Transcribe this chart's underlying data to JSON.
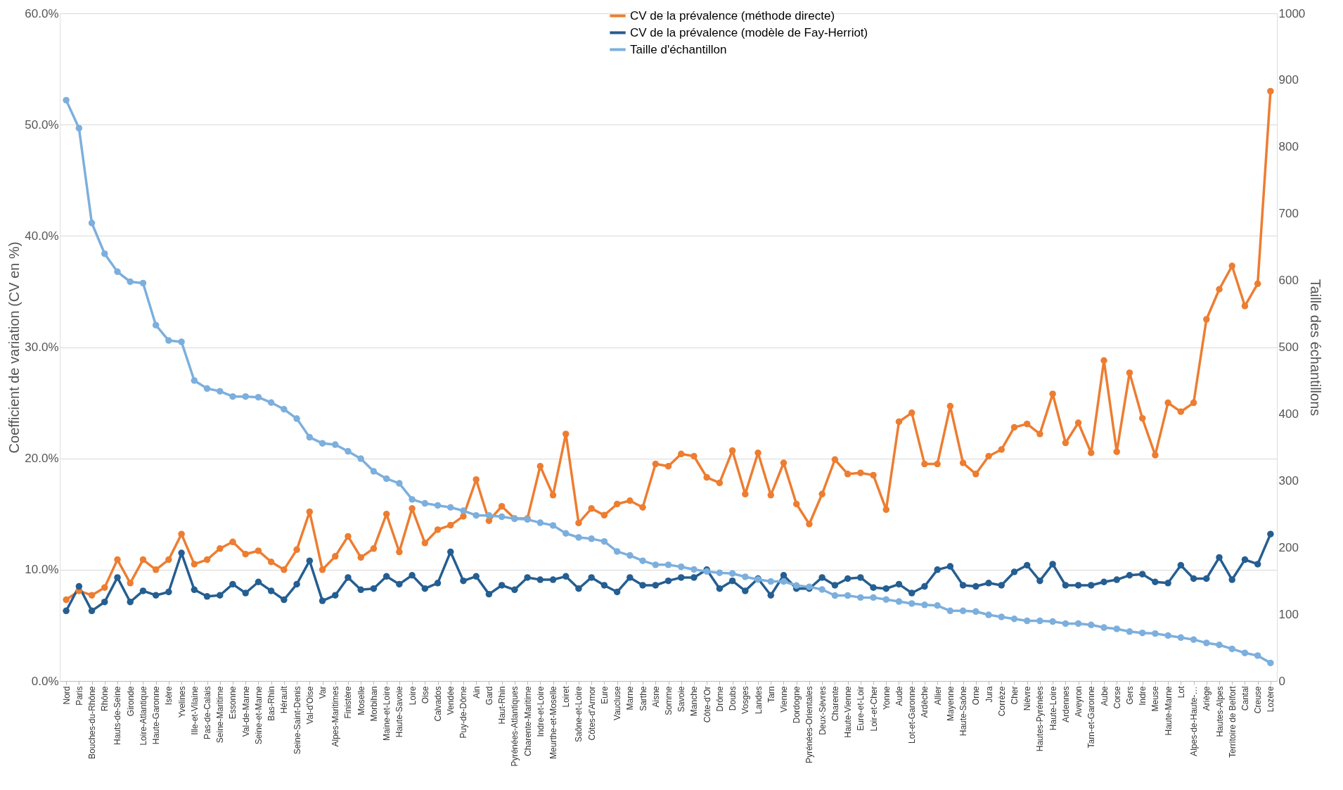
{
  "chart_data": {
    "type": "line",
    "ylabel": "Coefficient de variation (CV en %)",
    "y2label": "Taille des échantillons",
    "legend": "top",
    "grid": "y",
    "marker": "circle",
    "line_style": "solid",
    "categories": [
      "Nord",
      "Paris",
      "Bouches-du-Rhône",
      "Rhône",
      "Hauts-de-Seine",
      "Gironde",
      "Loire-Atlantique",
      "Haute-Garonne",
      "Isère",
      "Yvelines",
      "Ille-et-Vilaine",
      "Pas-de-Calais",
      "Seine-Maritime",
      "Essonne",
      "Val-de-Marne",
      "Seine-et-Marne",
      "Bas-Rhin",
      "Hérault",
      "Seine-Saint-Denis",
      "Val-d'Oise",
      "Var",
      "Alpes-Maritimes",
      "Finistère",
      "Moselle",
      "Morbihan",
      "Maine-et-Loire",
      "Haute-Savoie",
      "Loire",
      "Oise",
      "Calvados",
      "Vendée",
      "Puy-de-Dôme",
      "Ain",
      "Gard",
      "Haut-Rhin",
      "Pyrénées-Atlantiques",
      "Charente-Maritime",
      "Indre-et-Loire",
      "Meurthe-et-Moselle",
      "Loiret",
      "Saône-et-Loire",
      "Côtes-d'Armor",
      "Eure",
      "Vaucluse",
      "Marne",
      "Sarthe",
      "Aisne",
      "Somme",
      "Savoie",
      "Manche",
      "Côte-d'Or",
      "Drôme",
      "Doubs",
      "Vosges",
      "Landes",
      "Tarn",
      "Vienne",
      "Dordogne",
      "Pyrénées-Orientales",
      "Deux-Sèvres",
      "Charente",
      "Haute-Vienne",
      "Eure-et-Loir",
      "Loir-et-Cher",
      "Yonne",
      "Aude",
      "Lot-et-Garonne",
      "Ardèche",
      "Allier",
      "Mayenne",
      "Haute-Saône",
      "Orne",
      "Jura",
      "Corrèze",
      "Cher",
      "Nièvre",
      "Hautes-Pyrénées",
      "Haute-Loire",
      "Ardennes",
      "Aveyron",
      "Tarn-et-Garonne",
      "Aube",
      "Corse",
      "Gers",
      "Indre",
      "Meuse",
      "Haute-Marne",
      "Lot",
      "Alpes-de-Haute-…",
      "Ariège",
      "Hautes-Alpes",
      "Territoire de Belfort",
      "Cantal",
      "Creuse",
      "Lozère"
    ],
    "ylim": [
      0,
      60
    ],
    "yticks": [
      {
        "value": 0,
        "label": "0.0%"
      },
      {
        "value": 10,
        "label": "10.0%"
      },
      {
        "value": 20,
        "label": "20.0%"
      },
      {
        "value": 30,
        "label": "30.0%"
      },
      {
        "value": 40,
        "label": "40.0%"
      },
      {
        "value": 50,
        "label": "50.0%"
      },
      {
        "value": 60,
        "label": "60.0%"
      }
    ],
    "y2lim": [
      0,
      1000
    ],
    "y2ticks": [
      0,
      100,
      200,
      300,
      400,
      500,
      600,
      700,
      800,
      900,
      1000
    ],
    "series": [
      {
        "name": "CV de la prévalence (méthode directe)",
        "color": "#ed7d31",
        "values": [
          7.3,
          8.1,
          7.7,
          8.4,
          10.9,
          8.8,
          10.9,
          10.0,
          10.9,
          13.2,
          10.5,
          10.9,
          11.9,
          12.5,
          11.4,
          11.7,
          10.7,
          10.0,
          11.8,
          15.2,
          10.0,
          11.2,
          13.0,
          11.1,
          11.9,
          15.0,
          11.6,
          15.5,
          12.4,
          13.6,
          14.0,
          14.8,
          18.1,
          14.4,
          15.7,
          14.6,
          14.6,
          19.3,
          16.7,
          22.2,
          14.2,
          15.5,
          14.9,
          15.9,
          16.2,
          15.6,
          19.5,
          19.3,
          20.4,
          20.2,
          18.3,
          17.8,
          20.7,
          16.8,
          20.5,
          16.7,
          19.6,
          15.9,
          14.1,
          16.8,
          19.9,
          18.6,
          18.7,
          18.5,
          15.4,
          23.3,
          24.1,
          19.5,
          19.5,
          24.7,
          19.6,
          18.6,
          20.2,
          20.8,
          22.8,
          23.1,
          22.2,
          25.8,
          21.4,
          23.2,
          20.5,
          28.8,
          20.6,
          27.7,
          23.6,
          20.3,
          25.0,
          24.2,
          25.0,
          32.5,
          35.2,
          37.3,
          33.7,
          35.7,
          53.0
        ]
      },
      {
        "name": "CV de la prévalence (modèle de Fay-Herriot)",
        "color": "#255e91",
        "values": [
          6.3,
          8.5,
          6.3,
          7.1,
          9.3,
          7.1,
          8.1,
          7.7,
          8.0,
          11.5,
          8.2,
          7.6,
          7.7,
          8.7,
          7.9,
          8.9,
          8.1,
          7.3,
          8.7,
          10.8,
          7.2,
          7.7,
          9.3,
          8.2,
          8.3,
          9.4,
          8.7,
          9.5,
          8.3,
          8.8,
          11.6,
          9.0,
          9.4,
          7.8,
          8.6,
          8.2,
          9.3,
          9.1,
          9.1,
          9.4,
          8.3,
          9.3,
          8.6,
          8.0,
          9.3,
          8.6,
          8.6,
          9.0,
          9.3,
          9.3,
          10.0,
          8.3,
          9.0,
          8.1,
          9.2,
          7.7,
          9.5,
          8.3,
          8.3,
          9.3,
          8.6,
          9.2,
          9.3,
          8.4,
          8.3,
          8.7,
          7.9,
          8.5,
          10.0,
          10.3,
          8.6,
          8.5,
          8.8,
          8.6,
          9.8,
          10.4,
          9.0,
          10.5,
          8.6,
          8.6,
          8.6,
          8.9,
          9.1,
          9.5,
          9.6,
          8.9,
          8.8,
          10.4,
          9.2,
          9.2,
          11.1,
          9.1,
          10.9,
          10.5,
          13.2
        ]
      },
      {
        "name": "Taille d'échantillon",
        "color": "#7cafdd",
        "axis": "y2",
        "values": [
          870,
          828,
          686,
          640,
          613,
          598,
          596,
          533,
          510,
          508,
          450,
          438,
          434,
          426,
          426,
          425,
          417,
          407,
          393,
          365,
          356,
          354,
          344,
          333,
          314,
          303,
          296,
          272,
          266,
          263,
          260,
          255,
          248,
          248,
          246,
          243,
          242,
          237,
          233,
          221,
          215,
          213,
          209,
          194,
          188,
          180,
          174,
          174,
          171,
          167,
          164,
          162,
          161,
          156,
          152,
          149,
          149,
          143,
          141,
          137,
          128,
          128,
          125,
          125,
          122,
          119,
          116,
          114,
          113,
          105,
          105,
          104,
          99,
          96,
          93,
          90,
          90,
          89,
          86,
          86,
          84,
          80,
          78,
          74,
          72,
          71,
          68,
          65,
          62,
          57,
          54,
          48,
          42,
          38,
          27
        ]
      }
    ]
  }
}
